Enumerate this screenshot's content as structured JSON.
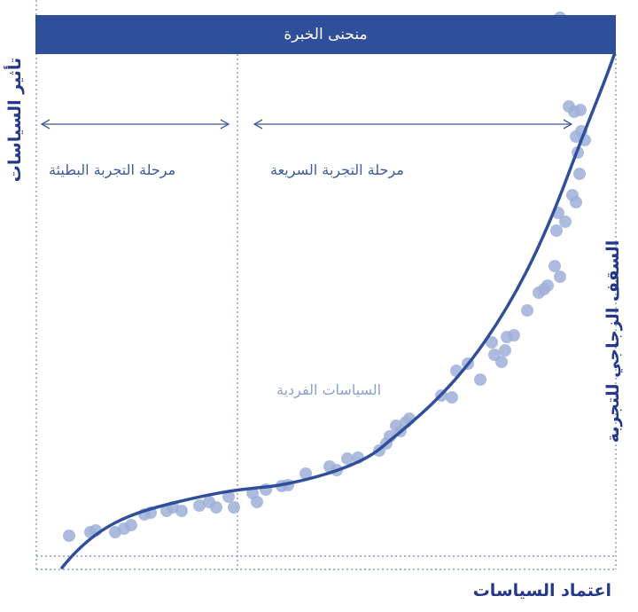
{
  "banner": {
    "title": "منحنى الخبرة"
  },
  "axes": {
    "y_label": "تأثير السياسات",
    "x_label": "اعتماد السياسات"
  },
  "ceiling_label": "السقف الزجاجي للتجربة",
  "phases": {
    "slow": "مرحلة التجربة البطيئة",
    "fast": "مرحلة التجربة السريعة"
  },
  "points_label": "السياسات الفردية",
  "colors": {
    "banner": "#2f4f9a",
    "curve": "#2f4f9a",
    "points": "#9fb0d8",
    "axis_text": "#24378a",
    "guides": "#6f89bf"
  }
}
